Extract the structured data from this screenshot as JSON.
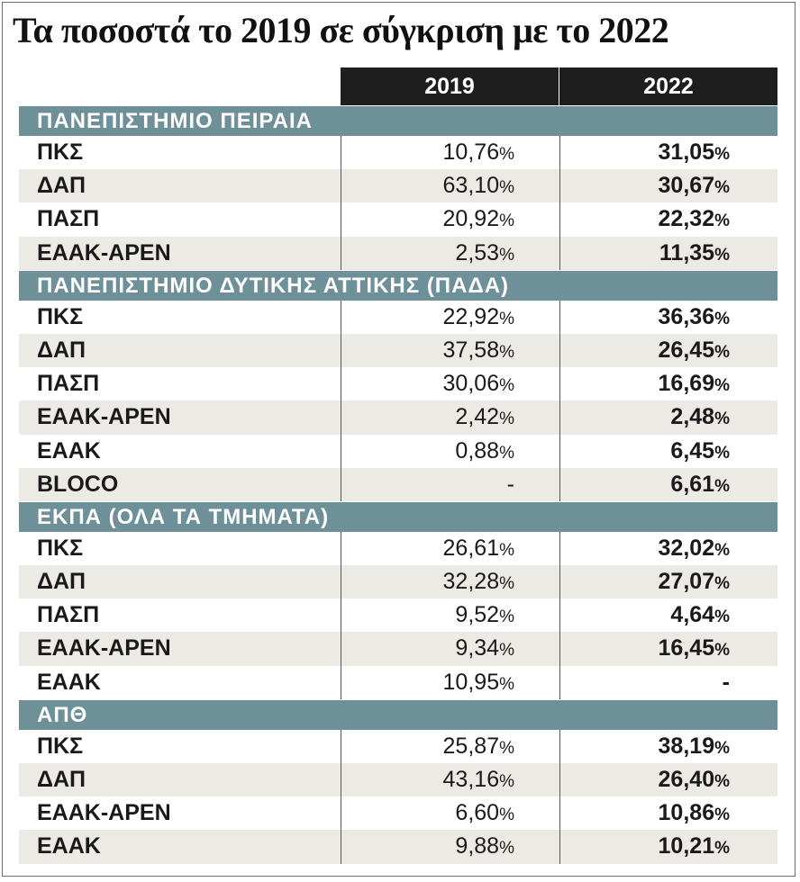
{
  "title": "Τα ποσοστά το 2019 σε σύγκριση με το 2022",
  "columns": [
    "2019",
    "2022"
  ],
  "chart_data": {
    "type": "table",
    "title": "Τα ποσοστά το 2019 σε σύγκριση με το 2022",
    "columns": [
      "2019",
      "2022"
    ],
    "unit": "%",
    "sections": [
      {
        "name": "ΠΑΝΕΠΙΣΤΗΜΙΟ ΠΕΙΡΑΙΑ",
        "rows": [
          {
            "label": "ΠΚΣ",
            "v2019": "10,76",
            "v2022": "31,05"
          },
          {
            "label": "ΔΑΠ",
            "v2019": "63,10",
            "v2022": "30,67"
          },
          {
            "label": "ΠΑΣΠ",
            "v2019": "20,92",
            "v2022": "22,32"
          },
          {
            "label": "ΕΑΑΚ-ΑΡΕΝ",
            "v2019": "2,53",
            "v2022": "11,35"
          }
        ]
      },
      {
        "name": "ΠΑΝΕΠΙΣΤΗΜΙΟ ΔΥΤΙΚΗΣ ΑΤΤΙΚΗΣ (ΠΑΔΑ)",
        "rows": [
          {
            "label": "ΠΚΣ",
            "v2019": "22,92",
            "v2022": "36,36"
          },
          {
            "label": "ΔΑΠ",
            "v2019": "37,58",
            "v2022": "26,45"
          },
          {
            "label": "ΠΑΣΠ",
            "v2019": "30,06",
            "v2022": "16,69"
          },
          {
            "label": "ΕΑΑΚ-ΑΡΕΝ",
            "v2019": "2,42",
            "v2022": "2,48"
          },
          {
            "label": "ΕΑΑΚ",
            "v2019": "0,88",
            "v2022": "6,45"
          },
          {
            "label": "BLOCO",
            "v2019": "-",
            "v2022": "6,61"
          }
        ]
      },
      {
        "name": "ΕΚΠΑ (ΟΛΑ ΤΑ ΤΜΗΜΑΤΑ)",
        "rows": [
          {
            "label": "ΠΚΣ",
            "v2019": "26,61",
            "v2022": "32,02"
          },
          {
            "label": "ΔΑΠ",
            "v2019": "32,28",
            "v2022": "27,07"
          },
          {
            "label": "ΠΑΣΠ",
            "v2019": "9,52",
            "v2022": "4,64"
          },
          {
            "label": "ΕΑΑΚ-ΑΡΕΝ",
            "v2019": "9,34",
            "v2022": "16,45"
          },
          {
            "label": "ΕΑΑΚ",
            "v2019": "10,95",
            "v2022": "-"
          }
        ]
      },
      {
        "name": "ΑΠΘ",
        "rows": [
          {
            "label": "ΠΚΣ",
            "v2019": "25,87",
            "v2022": "38,19"
          },
          {
            "label": "ΔΑΠ",
            "v2019": "43,16",
            "v2022": "26,40"
          },
          {
            "label": "ΕΑΑΚ-ΑΡΕΝ",
            "v2019": "6,60",
            "v2022": "10,86"
          },
          {
            "label": "ΕΑΑΚ",
            "v2019": "9,88",
            "v2022": "10,21"
          }
        ]
      }
    ]
  },
  "colors": {
    "header_bg": "#1e1e1e",
    "section_bg": "#6e9199",
    "row_shade": "#eceae4"
  }
}
